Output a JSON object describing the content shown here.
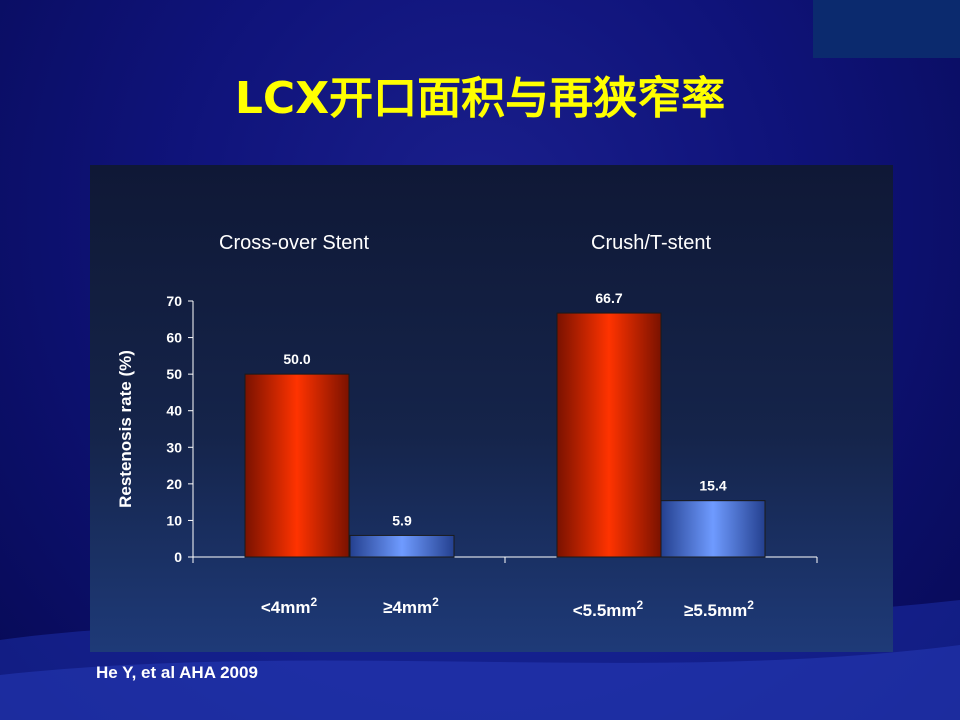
{
  "title": "LCX开口面积与再狭窄率",
  "citation": "He Y, et al AHA 2009",
  "groups": [
    {
      "title": "Cross-over Stent"
    },
    {
      "title": "Crush/T-stent"
    }
  ],
  "colors": {
    "title": "#ffff00",
    "bar_red": "#ff3300",
    "bar_blue": "#5e8ff0",
    "text": "#ffffff"
  },
  "chart_data": {
    "type": "bar",
    "ylabel": "Restenosis rate (%)",
    "ylim": [
      0,
      70
    ],
    "yticks": [
      0,
      10,
      20,
      30,
      40,
      50,
      60,
      70
    ],
    "grid": false,
    "bars": [
      {
        "group": "Cross-over Stent",
        "label": "<4mm",
        "sup": "2",
        "value": 50.0,
        "value_label": "50.0",
        "color": "red"
      },
      {
        "group": "Cross-over Stent",
        "label": "≥4mm",
        "sup": "2",
        "value": 5.9,
        "value_label": "5.9",
        "color": "blue"
      },
      {
        "group": "Crush/T-stent",
        "label": "<5.5mm",
        "sup": "2",
        "value": 66.7,
        "value_label": "66.7",
        "color": "red"
      },
      {
        "group": "Crush/T-stent",
        "label": "≥5.5mm",
        "sup": "2",
        "value": 15.4,
        "value_label": "15.4",
        "color": "blue"
      }
    ]
  }
}
